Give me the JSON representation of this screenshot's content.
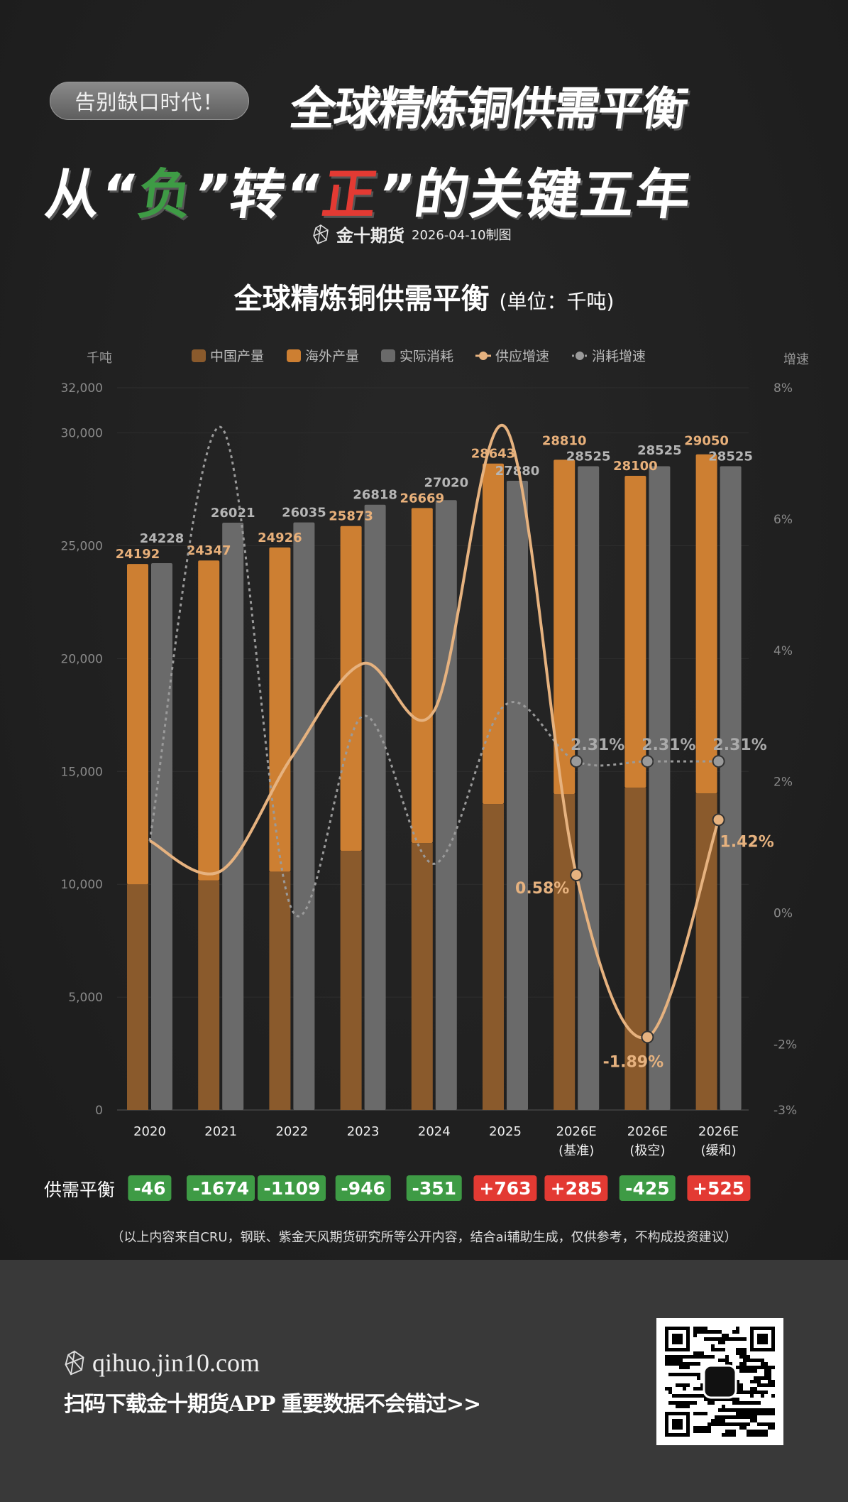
{
  "header": {
    "tag": "告别缺口时代！",
    "title_line1": "全球精炼铜供需平衡",
    "title_line2": {
      "p1": "从“",
      "neg": "负",
      "p2": "”转“",
      "pos": "正",
      "p3": "”的关键五年"
    },
    "brand": "金十期货",
    "date": "2026-04-10制图"
  },
  "chart_title": "全球精炼铜供需平衡",
  "chart_unit": "(单位：千吨)",
  "colors": {
    "china": "#8a5a2c",
    "overseas": "#cd7f32",
    "consumption": "#6a6a6a",
    "supply_growth": "#e6b27f",
    "consumption_growth": "#9a9a9a",
    "deficit": "#3e9b45",
    "surplus": "#e33a33"
  },
  "chart_data": {
    "type": "bar",
    "categories": [
      "2020",
      "2021",
      "2022",
      "2023",
      "2024",
      "2025",
      "2026E\n(基准)",
      "2026E\n(极空)",
      "2026E\n(缓和)"
    ],
    "series": [
      {
        "name": "中国产量",
        "stack": "supply",
        "values": [
          10000,
          10170,
          10560,
          11480,
          11830,
          13560,
          14000,
          14280,
          14030
        ]
      },
      {
        "name": "海外产量",
        "stack": "supply",
        "values": [
          14192,
          14177,
          14366,
          14393,
          14839,
          15083,
          14810,
          13820,
          15020
        ]
      },
      {
        "name": "实际消耗",
        "values": [
          24228,
          26021,
          26035,
          26818,
          27020,
          27880,
          28525,
          28525,
          28525
        ]
      },
      {
        "name": "供应增速",
        "type": "line",
        "axis": "right",
        "values": [
          1.1,
          0.64,
          2.38,
          3.8,
          3.08,
          7.4,
          0.58,
          -1.89,
          1.42
        ]
      },
      {
        "name": "消耗增速",
        "type": "line",
        "axis": "right",
        "dashed": true,
        "values": [
          1.1,
          7.4,
          0.05,
          3.0,
          0.75,
          3.17,
          2.31,
          2.31,
          2.31
        ]
      }
    ],
    "supply_totals": [
      24192,
      24347,
      24926,
      25873,
      26669,
      28643,
      28810,
      28100,
      29050
    ],
    "supply_growth_labels": [
      "",
      "",
      "",
      "",
      "",
      "",
      "0.58%",
      "-1.89%",
      "1.42%"
    ],
    "consumption_growth_labels": [
      "",
      "",
      "",
      "",
      "",
      "",
      "2.31%",
      "2.31%",
      "2.31%"
    ],
    "ylabel": "千吨",
    "y2label": "增速",
    "ylim": [
      0,
      32000
    ],
    "yticks": [
      0,
      5000,
      10000,
      15000,
      20000,
      25000,
      30000,
      32000
    ],
    "y2lim": [
      -3,
      8
    ],
    "y2ticks": [
      -3,
      -2,
      0,
      2,
      4,
      6,
      8
    ],
    "legend": [
      "中国产量",
      "海外产量",
      "实际消耗",
      "供应增速",
      "消耗增速"
    ],
    "legend_position": "top"
  },
  "balance": {
    "label": "供需平衡",
    "values": [
      "-46",
      "-1674",
      "-1109",
      "-946",
      "-351",
      "+763",
      "+285",
      "-425",
      "+525"
    ]
  },
  "footnote": "（以上内容来自CRU，钢联、紫金天风期货研究所等公开内容，结合ai辅助生成，仅供参考，不构成投资建议）",
  "footer": {
    "url": "qihuo.jin10.com",
    "slogan": "扫码下载金十期货APP 重要数据不会错过>>"
  }
}
